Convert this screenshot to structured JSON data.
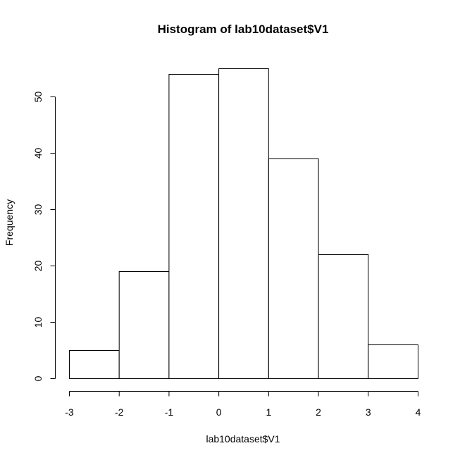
{
  "chart_data": {
    "type": "bar",
    "subtype": "histogram",
    "title": "Histogram of lab10dataset$V1",
    "xlabel": "lab10dataset$V1",
    "ylabel": "Frequency",
    "bins": [
      {
        "from": -3,
        "to": -2,
        "count": 5
      },
      {
        "from": -2,
        "to": -1,
        "count": 19
      },
      {
        "from": -1,
        "to": 0,
        "count": 54
      },
      {
        "from": 0,
        "to": 1,
        "count": 55
      },
      {
        "from": 1,
        "to": 2,
        "count": 39
      },
      {
        "from": 2,
        "to": 3,
        "count": 22
      },
      {
        "from": 3,
        "to": 4,
        "count": 6
      }
    ],
    "xlim": [
      -3,
      4
    ],
    "ylim": [
      0,
      55
    ],
    "x_ticks": [
      -3,
      -2,
      -1,
      0,
      1,
      2,
      3,
      4
    ],
    "x_tick_labels": [
      "-3",
      "-2",
      "-1",
      "0",
      "1",
      "2",
      "3",
      "4"
    ],
    "y_ticks": [
      0,
      10,
      20,
      30,
      40,
      50
    ],
    "y_tick_labels": [
      "0",
      "10",
      "20",
      "30",
      "40",
      "50"
    ],
    "bar_fill": "#ffffff",
    "bar_stroke": "#000000",
    "grid": false,
    "legend": false
  }
}
